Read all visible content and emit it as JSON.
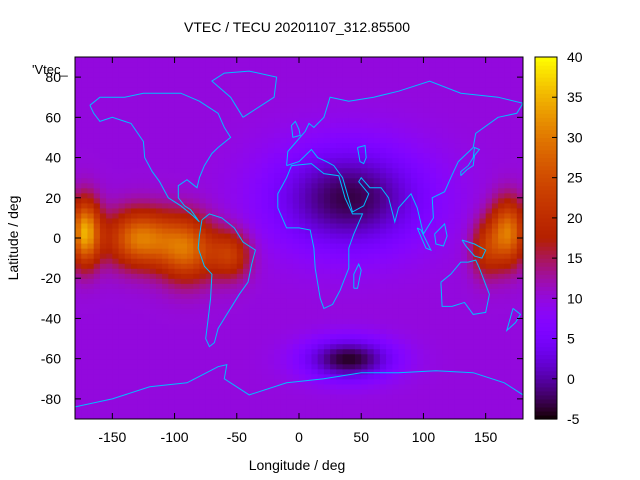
{
  "chart_data": {
    "type": "heatmap",
    "title": "VTEC / TECU 20201107_312.85500",
    "xlabel": "Longitude / deg",
    "ylabel": "Latitude / deg",
    "key_label": "'Vtec_",
    "xlim": [
      -180,
      180
    ],
    "ylim": [
      -90,
      90
    ],
    "x_ticks": [
      "-150",
      "-100",
      "-50",
      "0",
      "50",
      "100",
      "150"
    ],
    "y_ticks": [
      "80",
      "60",
      "40",
      "20",
      "0",
      "-20",
      "-40",
      "-60",
      "-80"
    ],
    "colorbar": {
      "range": [
        -5,
        40
      ],
      "ticks": [
        "40",
        "35",
        "30",
        "25",
        "20",
        "15",
        "10",
        "5",
        "0",
        "-5"
      ],
      "palette": "gnuplot rgbformulae 7,5,15"
    },
    "background_vtec_tecu": 10,
    "features": [
      {
        "lon": -172,
        "lat": 3,
        "tecu": 34,
        "slon": 12,
        "slat": 16
      },
      {
        "lon": -128,
        "lat": 0,
        "tecu": 30,
        "slon": 26,
        "slat": 14
      },
      {
        "lon": -90,
        "lat": -5,
        "tecu": 28,
        "slon": 22,
        "slat": 16
      },
      {
        "lon": -55,
        "lat": -8,
        "tecu": 22,
        "slon": 16,
        "slat": 12
      },
      {
        "lon": 168,
        "lat": 3,
        "tecu": 30,
        "slon": 14,
        "slat": 16
      },
      {
        "lon": 150,
        "lat": -5,
        "tecu": 20,
        "slon": 12,
        "slat": 14
      },
      {
        "lon": 40,
        "lat": -60,
        "tecu": -4,
        "slon": 35,
        "slat": 10
      },
      {
        "lon": 40,
        "lat": 20,
        "tecu": -3,
        "slon": 60,
        "slat": 25
      }
    ],
    "grid": false,
    "legend": "top-left",
    "overlay": "coastlines",
    "coastline_color": "#00bfff"
  }
}
